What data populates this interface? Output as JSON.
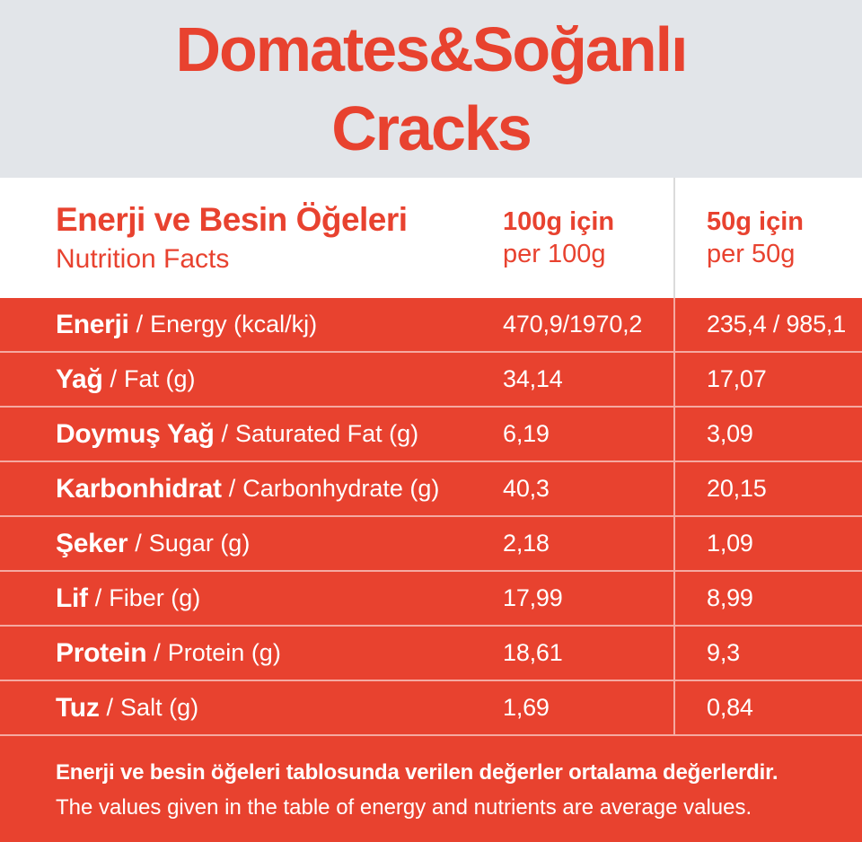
{
  "colors": {
    "red": "#E8422F",
    "header_bg": "#E2E5E9",
    "divider": "#DBDBDB",
    "row_line": "rgba(255,255,255,0.55)",
    "text_on_red": "#FFFFFF"
  },
  "header": {
    "title_line1": "Domates&Soğanlı",
    "title_line2": "Cracks"
  },
  "table": {
    "heading_tr": "Enerji ve Besin Öğeleri",
    "heading_en": "Nutrition Facts",
    "col_100g": {
      "tr": "100g için",
      "en": "per 100g"
    },
    "col_50g": {
      "tr": "50g için",
      "en": "per 50g"
    },
    "separator": "/",
    "rows": [
      {
        "label_tr": "Enerji",
        "label_en": "Energy (kcal/kj)",
        "per_100g": "470,9/1970,2",
        "per_50g": "235,4 / 985,1"
      },
      {
        "label_tr": "Yağ",
        "label_en": "Fat (g)",
        "per_100g": "34,14",
        "per_50g": "17,07"
      },
      {
        "label_tr": "Doymuş Yağ",
        "label_en": "Saturated Fat (g)",
        "per_100g": "6,19",
        "per_50g": "3,09"
      },
      {
        "label_tr": "Karbonhidrat",
        "label_en": "Carbonhydrate (g)",
        "per_100g": "40,3",
        "per_50g": "20,15"
      },
      {
        "label_tr": "Şeker",
        "label_en": "Sugar (g)",
        "per_100g": "2,18",
        "per_50g": "1,09"
      },
      {
        "label_tr": "Lif",
        "label_en": "Fiber (g)",
        "per_100g": "17,99",
        "per_50g": "8,99"
      },
      {
        "label_tr": "Protein",
        "label_en": "Protein (g)",
        "per_100g": "18,61",
        "per_50g": "9,3"
      },
      {
        "label_tr": "Tuz",
        "label_en": "Salt (g)",
        "per_100g": "1,69",
        "per_50g": "0,84"
      }
    ]
  },
  "footer": {
    "line_tr": "Enerji ve besin öğeleri tablosunda verilen değerler ortalama değerlerdir.",
    "line_en": "The values given in the table of energy and nutrients are average values."
  }
}
